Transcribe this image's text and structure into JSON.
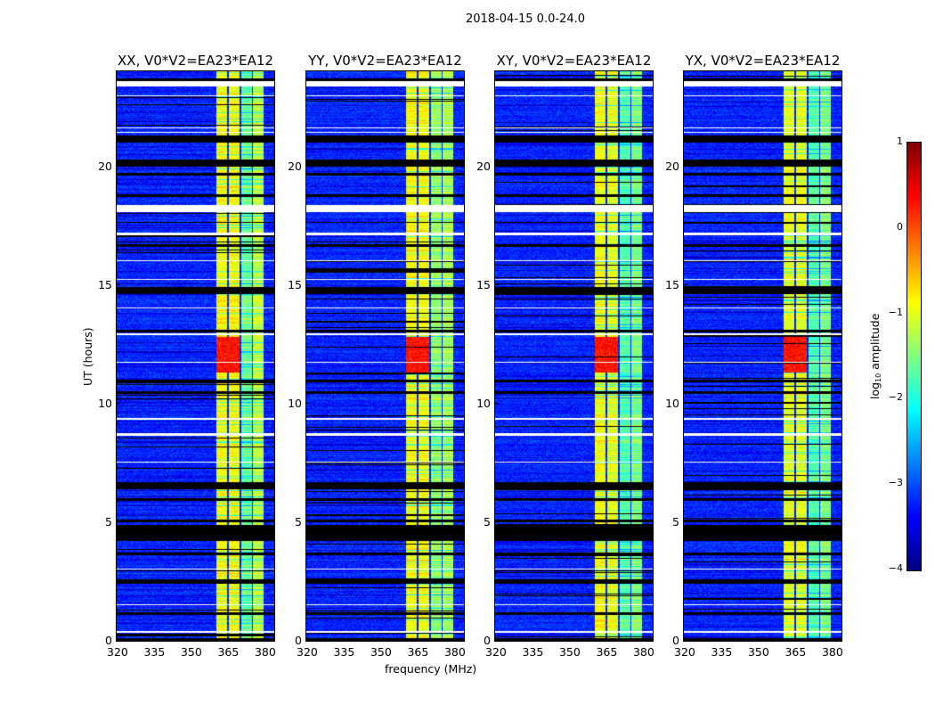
{
  "chart_data": {
    "type": "heatmap",
    "title": "2018-04-15 0.0-24.0",
    "xlabel": "frequency (MHz)",
    "ylabel": "UT (hours)",
    "xlim": [
      320,
      384
    ],
    "ylim": [
      0,
      24
    ],
    "xticks": [
      "320",
      "335",
      "350",
      "365",
      "380"
    ],
    "xtick_values": [
      320,
      335,
      350,
      365,
      380
    ],
    "yticks": [
      "0",
      "5",
      "10",
      "15",
      "20"
    ],
    "ytick_values": [
      0,
      5,
      10,
      15,
      20
    ],
    "colorbar": {
      "label_prefix": "log",
      "label_sub": "10",
      "label_suffix": " amplitude",
      "range": [
        -4,
        1
      ],
      "colormap": "jet",
      "ticks": [
        "1",
        "0",
        "−1",
        "−2",
        "−3",
        "−4"
      ],
      "tick_values": [
        1,
        0,
        -1,
        -2,
        -3,
        -4
      ]
    },
    "background_level": -3.2,
    "panels": [
      {
        "title": "XX, V0*V2=EA23*EA12",
        "bands": [
          {
            "f": [
              360.5,
              365.0
            ],
            "level": -0.9
          },
          {
            "f": [
              365.5,
              369.8
            ],
            "level": -0.9
          },
          {
            "f": [
              370.5,
              374.8
            ],
            "level": -1.6
          },
          {
            "f": [
              375.5,
              379.8
            ],
            "level": -1.2
          }
        ]
      },
      {
        "title": "YY, V0*V2=EA23*EA12",
        "bands": [
          {
            "f": [
              360.5,
              365.0
            ],
            "level": -0.9
          },
          {
            "f": [
              365.5,
              369.8
            ],
            "level": -0.9
          },
          {
            "f": [
              370.5,
              374.8
            ],
            "level": -1.4
          },
          {
            "f": [
              375.5,
              379.8
            ],
            "level": -1.3
          }
        ]
      },
      {
        "title": "XY, V0*V2=EA23*EA12",
        "bands": [
          {
            "f": [
              360.5,
              365.0
            ],
            "level": -0.9
          },
          {
            "f": [
              365.5,
              369.8
            ],
            "level": -1.0
          },
          {
            "f": [
              370.5,
              374.8
            ],
            "level": -1.7
          },
          {
            "f": [
              375.5,
              379.8
            ],
            "level": -1.5
          }
        ]
      },
      {
        "title": "YX, V0*V2=EA23*EA12",
        "bands": [
          {
            "f": [
              360.5,
              365.0
            ],
            "level": -1.0
          },
          {
            "f": [
              365.5,
              369.8
            ],
            "level": -1.0
          },
          {
            "f": [
              370.5,
              374.8
            ],
            "level": -1.7
          },
          {
            "f": [
              375.5,
              379.8
            ],
            "level": -1.5
          }
        ]
      }
    ],
    "rfi_burst": {
      "t": [
        11.3,
        12.8
      ],
      "f": [
        360.5,
        369.8
      ],
      "level": 0.3
    },
    "flagged_white_hours": [
      [
        23.35,
        23.6
      ],
      [
        22.95,
        23.0
      ],
      [
        21.6,
        21.65
      ],
      [
        21.4,
        21.45
      ],
      [
        18.05,
        18.35
      ],
      [
        17.1,
        17.2
      ],
      [
        16.0,
        16.05
      ],
      [
        15.2,
        15.25
      ],
      [
        14.0,
        14.05
      ],
      [
        12.9,
        12.95
      ],
      [
        11.7,
        11.75
      ],
      [
        9.3,
        9.4
      ],
      [
        8.65,
        8.75
      ],
      [
        7.5,
        7.55
      ],
      [
        3.0,
        3.05
      ],
      [
        1.5,
        1.55
      ],
      [
        0.35,
        0.4
      ]
    ],
    "flagged_black_hours": [
      [
        23.6,
        23.7
      ],
      [
        21.0,
        21.3
      ],
      [
        20.0,
        20.3
      ],
      [
        19.6,
        19.7
      ],
      [
        18.7,
        18.8
      ],
      [
        17.6,
        17.65
      ],
      [
        16.6,
        16.7
      ],
      [
        14.6,
        14.9
      ],
      [
        13.0,
        13.1
      ],
      [
        10.9,
        11.0
      ],
      [
        10.4,
        10.5
      ],
      [
        6.4,
        6.7
      ],
      [
        5.9,
        6.0
      ],
      [
        5.0,
        5.1
      ],
      [
        4.2,
        4.9
      ],
      [
        3.6,
        3.7
      ],
      [
        2.4,
        2.6
      ],
      [
        1.1,
        1.2
      ],
      [
        0.0,
        0.1
      ]
    ]
  }
}
